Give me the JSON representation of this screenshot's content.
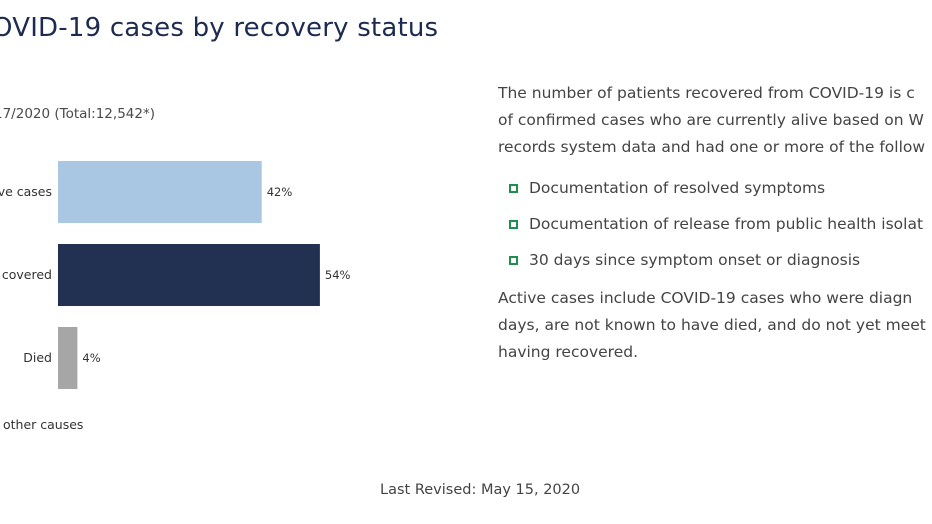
{
  "page": {
    "title": "OVID-19 cases by recovery status",
    "last_revised": "Last Revised: May 15, 2020"
  },
  "chart_data": {
    "type": "bar",
    "orientation": "horizontal",
    "subtitle": "17/2020 (Total:12,542*)",
    "categories": [
      "ve cases",
      "covered",
      "Died"
    ],
    "values": [
      42,
      54,
      4
    ],
    "value_labels": [
      "42%",
      "54%",
      "4%"
    ],
    "colors": [
      "#a9c6e3",
      "#223152",
      "#a6a6a6"
    ],
    "xlim": [
      0,
      100
    ],
    "grid": false,
    "footnote": "other causes"
  },
  "description": {
    "intro_lines": [
      "The number of patients recovered from COVID-19 is c",
      "of confirmed cases who are currently alive based on W",
      "records system data and had one or more of the follow"
    ],
    "bullets": [
      "Documentation of resolved symptoms",
      "Documentation of release from public health isolat",
      "30 days since symptom onset or diagnosis"
    ],
    "outro_lines": [
      "Active cases include COVID-19 cases who were diagn",
      "days, are not known to have died, and do not yet meet",
      "having recovered."
    ],
    "bullet_color": "#1f8f4e"
  }
}
